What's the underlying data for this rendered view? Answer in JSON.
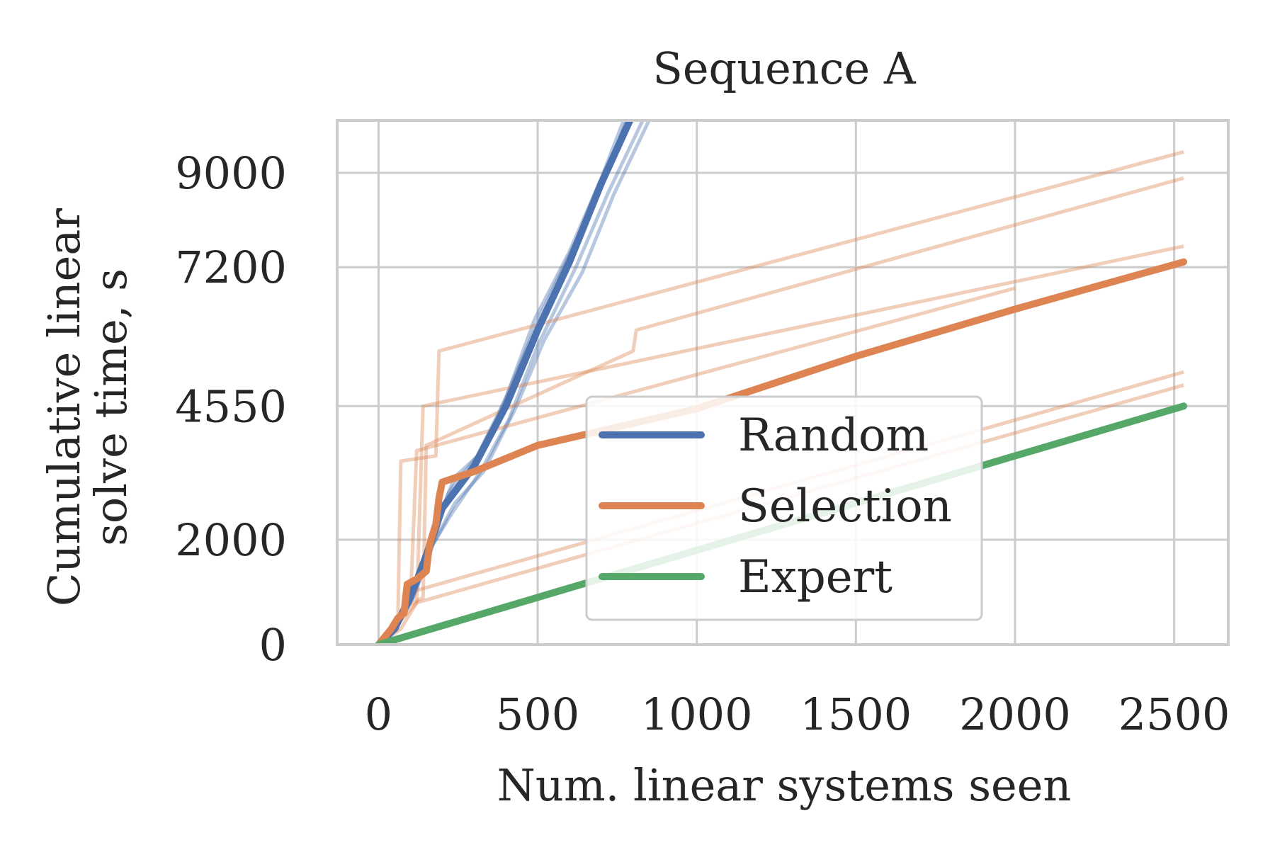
{
  "chart_data": {
    "type": "line",
    "title": "Sequence A",
    "xlabel": "Num. linear systems seen",
    "ylabel_lines": [
      "Cumulative linear",
      "solve time, s"
    ],
    "xlim": [
      -130,
      2670
    ],
    "ylim": [
      0,
      10000
    ],
    "xticks": [
      0,
      500,
      1000,
      1500,
      2000,
      2500
    ],
    "xtick_labels": [
      "0",
      "500",
      "1000",
      "1500",
      "2000",
      "2500"
    ],
    "yticks": [
      0,
      2000,
      4550,
      7200,
      9000
    ],
    "ytick_labels": [
      "0",
      "2000",
      "4550",
      "7200",
      "9000"
    ],
    "grid": true,
    "legend_position": "center-right",
    "colors": {
      "Random": "#4c72b0",
      "Selection": "#dd8452",
      "Expert": "#55a868",
      "grid": "#cccccc",
      "text": "#262626"
    },
    "series": [
      {
        "name": "Random",
        "color": "#4c72b0",
        "values": [
          [
            0,
            0
          ],
          [
            50,
            300
          ],
          [
            100,
            900
          ],
          [
            150,
            1700
          ],
          [
            200,
            2600
          ],
          [
            300,
            3400
          ],
          [
            400,
            4550
          ],
          [
            500,
            6000
          ],
          [
            600,
            7300
          ],
          [
            700,
            8800
          ],
          [
            790,
            10000
          ]
        ],
        "runs": [
          [
            [
              0,
              0
            ],
            [
              60,
              500
            ],
            [
              120,
              1300
            ],
            [
              180,
              2300
            ],
            [
              240,
              3200
            ],
            [
              330,
              3700
            ],
            [
              420,
              5000
            ],
            [
              510,
              6300
            ],
            [
              620,
              7700
            ],
            [
              720,
              9100
            ],
            [
              780,
              10000
            ]
          ],
          [
            [
              0,
              0
            ],
            [
              50,
              250
            ],
            [
              110,
              900
            ],
            [
              170,
              1900
            ],
            [
              240,
              2700
            ],
            [
              330,
              3300
            ],
            [
              430,
              4500
            ],
            [
              520,
              5800
            ],
            [
              640,
              7100
            ],
            [
              740,
              8600
            ],
            [
              850,
              10000
            ]
          ],
          [
            [
              0,
              0
            ],
            [
              55,
              400
            ],
            [
              110,
              1000
            ],
            [
              160,
              1800
            ],
            [
              230,
              2500
            ],
            [
              320,
              3300
            ],
            [
              410,
              4300
            ],
            [
              500,
              5700
            ],
            [
              620,
              7200
            ],
            [
              720,
              8600
            ],
            [
              830,
              10000
            ]
          ],
          [
            [
              0,
              0
            ],
            [
              50,
              350
            ],
            [
              100,
              800
            ],
            [
              160,
              1700
            ],
            [
              220,
              2900
            ],
            [
              310,
              3600
            ],
            [
              400,
              4700
            ],
            [
              490,
              6200
            ],
            [
              600,
              7500
            ],
            [
              700,
              8900
            ],
            [
              770,
              10000
            ]
          ]
        ]
      },
      {
        "name": "Selection",
        "color": "#dd8452",
        "values": [
          [
            0,
            0
          ],
          [
            40,
            300
          ],
          [
            60,
            500
          ],
          [
            80,
            600
          ],
          [
            90,
            1150
          ],
          [
            120,
            1250
          ],
          [
            150,
            1400
          ],
          [
            160,
            1900
          ],
          [
            180,
            2300
          ],
          [
            190,
            2800
          ],
          [
            200,
            3100
          ],
          [
            300,
            3300
          ],
          [
            500,
            3800
          ],
          [
            1000,
            4500
          ],
          [
            1500,
            5500
          ],
          [
            2000,
            6400
          ],
          [
            2530,
            7300
          ]
        ],
        "runs": [
          [
            [
              0,
              0
            ],
            [
              60,
              300
            ],
            [
              70,
              3500
            ],
            [
              180,
              3600
            ],
            [
              190,
              5600
            ],
            [
              2530,
              9400
            ]
          ],
          [
            [
              0,
              0
            ],
            [
              80,
              700
            ],
            [
              140,
              900
            ],
            [
              150,
              3800
            ],
            [
              800,
              5600
            ],
            [
              810,
              6000
            ],
            [
              2530,
              8900
            ]
          ],
          [
            [
              0,
              0
            ],
            [
              120,
              800
            ],
            [
              140,
              4550
            ],
            [
              2530,
              7600
            ]
          ],
          [
            [
              0,
              0
            ],
            [
              100,
              800
            ],
            [
              120,
              3700
            ],
            [
              2000,
              6800
            ]
          ],
          [
            [
              0,
              0
            ],
            [
              60,
              400
            ],
            [
              100,
              1000
            ],
            [
              2530,
              5200
            ]
          ],
          [
            [
              0,
              0
            ],
            [
              70,
              300
            ],
            [
              120,
              800
            ],
            [
              2530,
              4950
            ]
          ]
        ]
      },
      {
        "name": "Expert",
        "color": "#55a868",
        "values": [
          [
            0,
            0
          ],
          [
            500,
            900
          ],
          [
            1000,
            1800
          ],
          [
            1500,
            2700
          ],
          [
            2000,
            3600
          ],
          [
            2530,
            4550
          ]
        ]
      }
    ]
  }
}
